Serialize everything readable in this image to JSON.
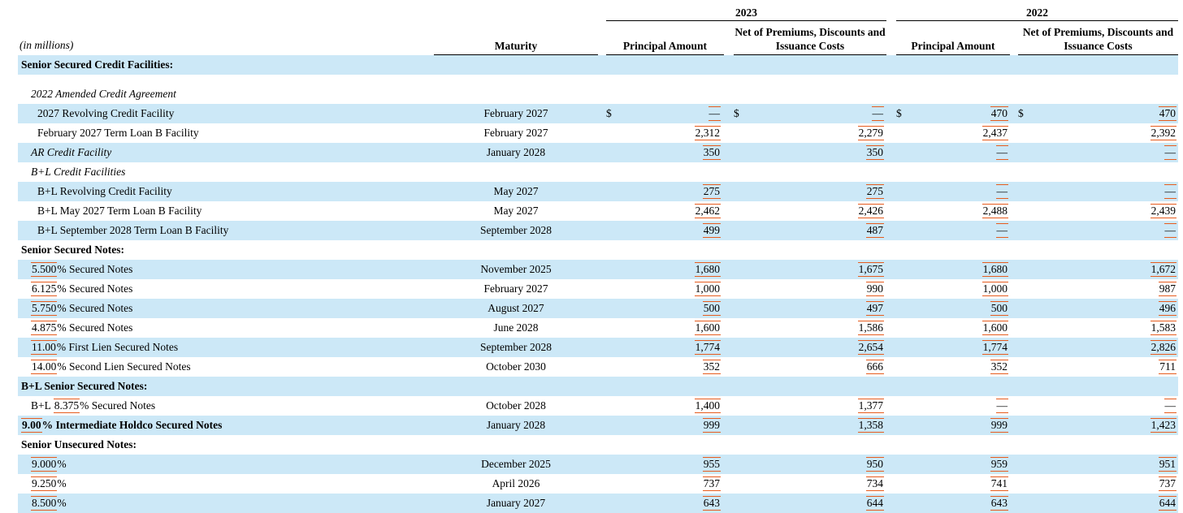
{
  "header": {
    "in_millions": "(in millions)",
    "maturity": "Maturity",
    "groups": [
      {
        "year": "2023",
        "principal": "Principal Amount",
        "net_line1": "Net of Premiums, Discounts and",
        "net_line2": "Issuance Costs"
      },
      {
        "year": "2022",
        "principal": "Principal Amount",
        "net_line1": "Net of Premiums, Discounts and",
        "net_line2": "Issuance Costs"
      }
    ]
  },
  "colors": {
    "row_band": "#cce8f7",
    "change_marker": "#e65c1e"
  },
  "rows": [
    {
      "kind": "section",
      "shaded": true,
      "bold": true,
      "indent": 0,
      "label": {
        "pre": "Senior Secured Credit Facilities:"
      }
    },
    {
      "kind": "spacer"
    },
    {
      "kind": "item",
      "shaded": false,
      "italic": true,
      "indent": 1,
      "label": {
        "pre": "2022 Amended Credit Agreement"
      }
    },
    {
      "kind": "item",
      "shaded": true,
      "indent": 2,
      "label": {
        "pre": "2027 Revolving Credit Facility"
      },
      "maturity": "February 2027",
      "values": [
        {
          "dollar": "$",
          "amount": "—"
        },
        {
          "dollar": "$",
          "amount": "—"
        },
        {
          "dollar": "$",
          "amount": "470"
        },
        {
          "dollar": "$",
          "amount": "470"
        }
      ]
    },
    {
      "kind": "item",
      "shaded": false,
      "indent": 2,
      "label": {
        "pre": "February 2027 Term Loan B Facility"
      },
      "maturity": "February 2027",
      "values": [
        {
          "amount": "2,312"
        },
        {
          "amount": "2,279"
        },
        {
          "amount": "2,437"
        },
        {
          "amount": "2,392"
        }
      ]
    },
    {
      "kind": "item",
      "shaded": true,
      "italic": true,
      "indent": 1,
      "label": {
        "pre": "AR Credit Facility"
      },
      "maturity": "January 2028",
      "values": [
        {
          "amount": "350"
        },
        {
          "amount": "350"
        },
        {
          "amount": "—"
        },
        {
          "amount": "—"
        }
      ]
    },
    {
      "kind": "item",
      "shaded": false,
      "italic": true,
      "indent": 1,
      "label": {
        "pre": "B+L Credit Facilities"
      }
    },
    {
      "kind": "item",
      "shaded": true,
      "indent": 2,
      "label": {
        "pre": "B+L Revolving Credit Facility"
      },
      "maturity": "May 2027",
      "values": [
        {
          "amount": "275"
        },
        {
          "amount": "275"
        },
        {
          "amount": "—"
        },
        {
          "amount": "—"
        }
      ]
    },
    {
      "kind": "item",
      "shaded": false,
      "indent": 2,
      "label": {
        "pre": "B+L May 2027 Term Loan B Facility"
      },
      "maturity": "May 2027",
      "values": [
        {
          "amount": "2,462"
        },
        {
          "amount": "2,426"
        },
        {
          "amount": "2,488"
        },
        {
          "amount": "2,439"
        }
      ]
    },
    {
      "kind": "item",
      "shaded": true,
      "indent": 2,
      "label": {
        "pre": "B+L September 2028 Term Loan B Facility"
      },
      "maturity": "September 2028",
      "values": [
        {
          "amount": "499"
        },
        {
          "amount": "487"
        },
        {
          "amount": "—"
        },
        {
          "amount": "—"
        }
      ]
    },
    {
      "kind": "section",
      "shaded": false,
      "bold": true,
      "indent": 0,
      "label": {
        "pre": "Senior Secured Notes:"
      }
    },
    {
      "kind": "item",
      "shaded": true,
      "indent": 1,
      "label": {
        "num": "5.500",
        "rest": "% Secured Notes"
      },
      "maturity": "November 2025",
      "values": [
        {
          "amount": "1,680"
        },
        {
          "amount": "1,675"
        },
        {
          "amount": "1,680"
        },
        {
          "amount": "1,672"
        }
      ]
    },
    {
      "kind": "item",
      "shaded": false,
      "indent": 1,
      "label": {
        "num": "6.125",
        "rest": "% Secured Notes"
      },
      "maturity": "February 2027",
      "values": [
        {
          "amount": "1,000"
        },
        {
          "amount": "990"
        },
        {
          "amount": "1,000"
        },
        {
          "amount": "987"
        }
      ]
    },
    {
      "kind": "item",
      "shaded": true,
      "indent": 1,
      "label": {
        "num": "5.750",
        "rest": "% Secured Notes"
      },
      "maturity": "August 2027",
      "values": [
        {
          "amount": "500"
        },
        {
          "amount": "497"
        },
        {
          "amount": "500"
        },
        {
          "amount": "496"
        }
      ]
    },
    {
      "kind": "item",
      "shaded": false,
      "indent": 1,
      "label": {
        "num": "4.875",
        "rest": "% Secured Notes"
      },
      "maturity": "June 2028",
      "values": [
        {
          "amount": "1,600"
        },
        {
          "amount": "1,586"
        },
        {
          "amount": "1,600"
        },
        {
          "amount": "1,583"
        }
      ]
    },
    {
      "kind": "item",
      "shaded": true,
      "indent": 1,
      "label": {
        "num": "11.00",
        "rest": "% First Lien Secured Notes"
      },
      "maturity": "September 2028",
      "values": [
        {
          "amount": "1,774"
        },
        {
          "amount": "2,654"
        },
        {
          "amount": "1,774"
        },
        {
          "amount": "2,826"
        }
      ]
    },
    {
      "kind": "item",
      "shaded": false,
      "indent": 1,
      "label": {
        "num": "14.00",
        "rest": "% Second Lien Secured Notes"
      },
      "maturity": "October 2030",
      "values": [
        {
          "amount": "352"
        },
        {
          "amount": "666"
        },
        {
          "amount": "352"
        },
        {
          "amount": "711"
        }
      ]
    },
    {
      "kind": "section",
      "shaded": true,
      "bold": true,
      "indent": 0,
      "label": {
        "pre": "B+L Senior Secured Notes:"
      }
    },
    {
      "kind": "item",
      "shaded": false,
      "indent": 1,
      "label": {
        "pre": "B+L ",
        "num": "8.375",
        "rest": "% Secured Notes"
      },
      "maturity": "October 2028",
      "values": [
        {
          "amount": "1,400"
        },
        {
          "amount": "1,377"
        },
        {
          "amount": "—"
        },
        {
          "amount": "—"
        }
      ]
    },
    {
      "kind": "item",
      "shaded": true,
      "bold": true,
      "indent": 0,
      "label": {
        "num": "9.00",
        "rest": "% Intermediate Holdco Secured Notes"
      },
      "maturity": "January 2028",
      "values": [
        {
          "amount": "999"
        },
        {
          "amount": "1,358"
        },
        {
          "amount": "999"
        },
        {
          "amount": "1,423"
        }
      ]
    },
    {
      "kind": "section",
      "shaded": false,
      "bold": true,
      "indent": 0,
      "label": {
        "pre": "Senior Unsecured Notes:"
      }
    },
    {
      "kind": "item",
      "shaded": true,
      "indent": 1,
      "label": {
        "num": "9.000",
        "rest": "%"
      },
      "maturity": "December 2025",
      "values": [
        {
          "amount": "955"
        },
        {
          "amount": "950"
        },
        {
          "amount": "959"
        },
        {
          "amount": "951"
        }
      ]
    },
    {
      "kind": "item",
      "shaded": false,
      "indent": 1,
      "label": {
        "num": "9.250",
        "rest": "%"
      },
      "maturity": "April 2026",
      "values": [
        {
          "amount": "737"
        },
        {
          "amount": "734"
        },
        {
          "amount": "741"
        },
        {
          "amount": "737"
        }
      ]
    },
    {
      "kind": "item",
      "shaded": true,
      "indent": 1,
      "label": {
        "num": "8.500",
        "rest": "%"
      },
      "maturity": "January 2027",
      "values": [
        {
          "amount": "643"
        },
        {
          "amount": "644"
        },
        {
          "amount": "643"
        },
        {
          "amount": "644"
        }
      ]
    }
  ]
}
